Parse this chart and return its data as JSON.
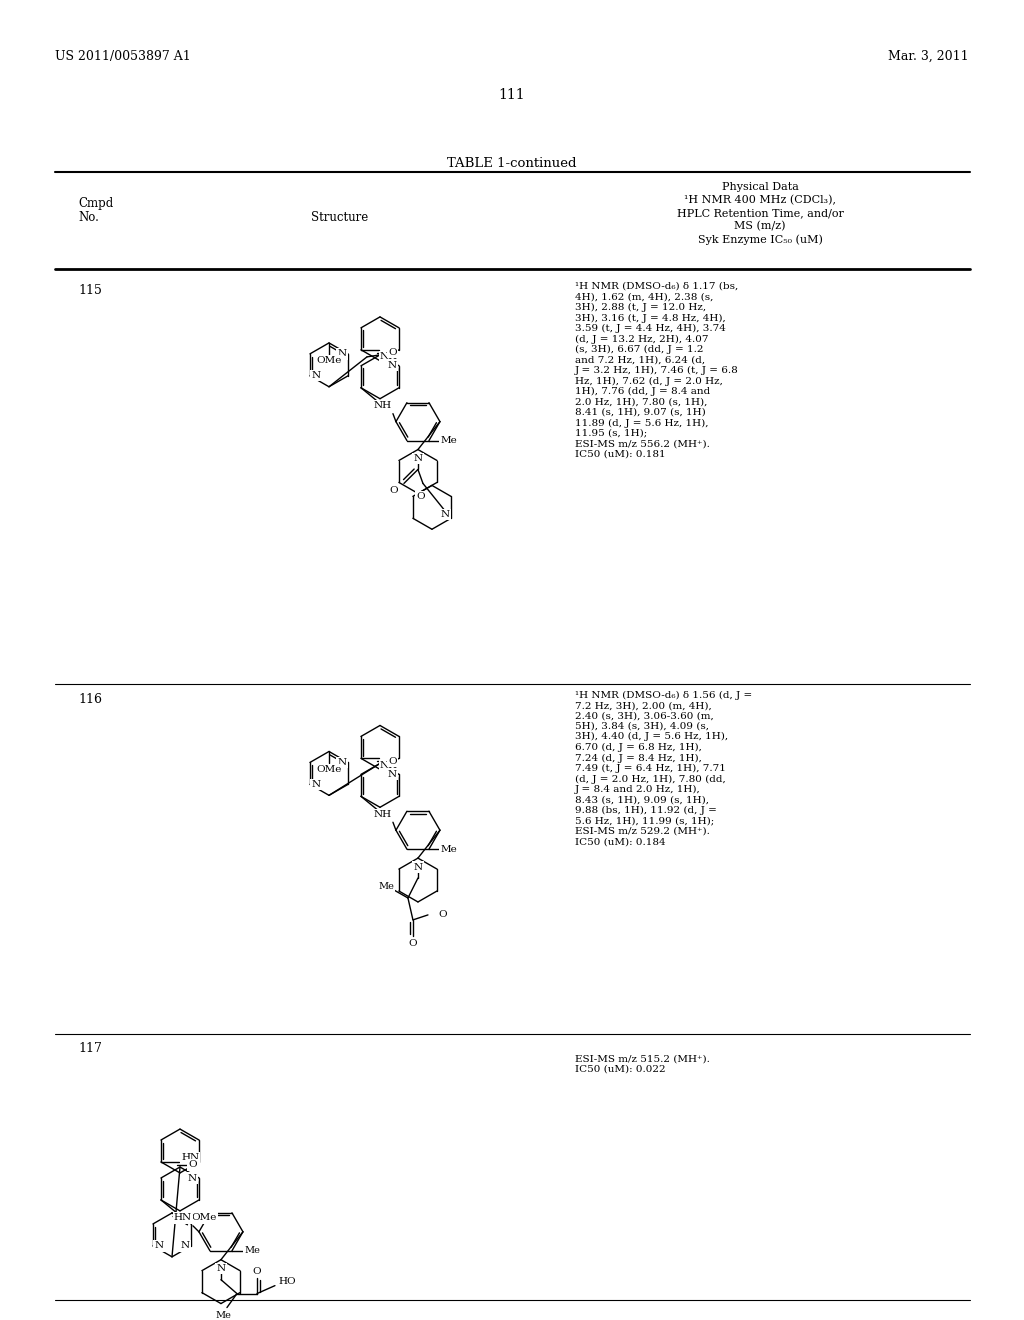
{
  "background_color": "#ffffff",
  "header_left": "US 2011/0053897 A1",
  "header_right": "Mar. 3, 2011",
  "page_number": "111",
  "table_title": "TABLE 1-continued",
  "nmr_115": "1H NMR (DMSO-d6) δ 1.17 (bs,\n4H), 1.62 (m, 4H), 2.38 (s,\n3H), 2.88 (t, J = 12.0 Hz,\n3H), 3.16 (t, J = 4.8 Hz, 4H),\n3.59 (t, J = 4.4 Hz, 4H), 3.74\n(d, J = 13.2 Hz, 2H), 4.07\n(s, 3H), 6.67 (dd, J = 1.2\nand 7.2 Hz, 1H), 6.24 (d,\nJ = 3.2 Hz, 1H), 7.46 (t, J = 6.8\nHz, 1H), 7.62 (d, J = 2.0 Hz,\n1H), 7.76 (dd, J = 8.4 and\n2.0 Hz, 1H), 7.80 (s, 1H),\n8.41 (s, 1H), 9.07 (s, 1H)\n11.89 (d, J = 5.6 Hz, 1H),\n11.95 (s, 1H);\nESI-MS m/z 556.2 (MH+).\nIC50 (uM): 0.181",
  "nmr_116": "1H NMR (DMSO-d6) δ 1.56 (d, J =\n7.2 Hz, 3H), 2.00 (m, 4H),\n2.40 (s, 3H), 3.06-3.60 (m,\n5H), 3.84 (s, 3H), 4.09 (s,\n3H), 4.40 (d, J = 5.6 Hz, 1H),\n6.70 (d, J = 6.8 Hz, 1H),\n7.24 (d, J = 8.4 Hz, 1H),\n7.49 (t, J = 6.4 Hz, 1H), 7.71\n(d, J = 2.0 Hz, 1H), 7.80 (dd,\nJ = 8.4 and 2.0 Hz, 1H),\n8.43 (s, 1H), 9.09 (s, 1H),\n9.88 (bs, 1H), 11.92 (d, J =\n5.6 Hz, 1H), 11.99 (s, 1H);\nESI-MS m/z 529.2 (MH+).\nIC50 (uM): 0.184",
  "nmr_117": "ESI-MS m/z 515.2 (MH+).\nIC50 (uM): 0.022"
}
